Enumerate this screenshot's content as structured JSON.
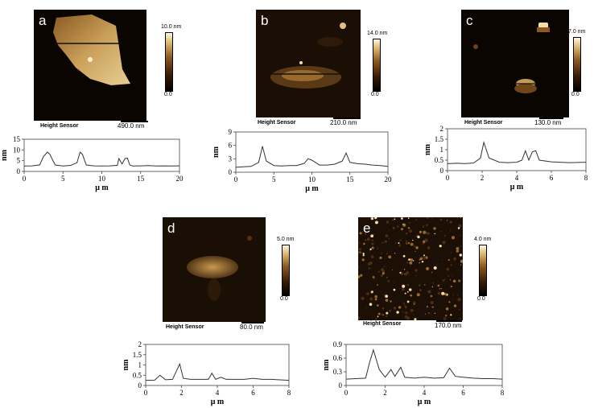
{
  "colors": {
    "afm_dark": "#0b0502",
    "afm_bright": "#e7c98a",
    "line": "#333333"
  },
  "panels": [
    {
      "letter": "a",
      "caption": "Height Sensor",
      "scale_bar": "490.0 nm",
      "colorbar_max": "10.0 nm",
      "colorbar_min": "0.0"
    },
    {
      "letter": "b",
      "caption": "Height Sensor",
      "scale_bar": "210.0 nm",
      "colorbar_max": "14.0 nm",
      "colorbar_min": "0.0"
    },
    {
      "letter": "c",
      "caption": "Height Sensor",
      "scale_bar": "130.0 nm",
      "colorbar_max": "7.0 nm",
      "colorbar_min": "0.0"
    },
    {
      "letter": "d",
      "caption": "Height Sensor",
      "scale_bar": "80.0 nm",
      "colorbar_max": "5.0 nm",
      "colorbar_min": "0.0"
    },
    {
      "letter": "e",
      "caption": "Height Sensor",
      "scale_bar": "170.0 nm",
      "colorbar_max": "4.0 nm",
      "colorbar_min": "0.0"
    }
  ],
  "chart_data": [
    {
      "type": "line",
      "xlabel": "μ m",
      "ylabel": "nm",
      "xlim": [
        0,
        20
      ],
      "ylim": [
        0,
        15
      ],
      "xticks": [
        0,
        5,
        10,
        15,
        20
      ],
      "yticks": [
        0,
        5,
        10,
        15
      ],
      "xticklabels": [
        "0",
        "5",
        "10",
        "15",
        "20"
      ],
      "yticklabels": [
        "0",
        "5",
        "10",
        "15"
      ],
      "x": [
        0,
        1,
        2,
        2.5,
        3,
        3.3,
        4,
        5,
        6,
        6.8,
        7.2,
        7.5,
        8,
        9,
        10,
        11,
        12,
        12.2,
        12.6,
        13,
        13.3,
        13.6,
        14,
        15,
        16,
        17,
        18,
        19,
        20
      ],
      "y": [
        2.5,
        2.6,
        3,
        7,
        9,
        8,
        3,
        2.5,
        2.8,
        4,
        9,
        8,
        3,
        2.6,
        2.5,
        2.6,
        2.8,
        6,
        3.5,
        6,
        6.2,
        3,
        2.5,
        2.6,
        2.7,
        2.5,
        2.6,
        2.5,
        2.6
      ]
    },
    {
      "type": "line",
      "xlabel": "μ m",
      "ylabel": "nm",
      "xlim": [
        0,
        20
      ],
      "ylim": [
        0,
        9
      ],
      "xticks": [
        0,
        5,
        10,
        15,
        20
      ],
      "yticks": [
        0,
        3,
        6,
        9
      ],
      "xticklabels": [
        "0",
        "5",
        "10",
        "15",
        "20"
      ],
      "yticklabels": [
        "0",
        "3",
        "6",
        "9"
      ],
      "x": [
        0,
        1,
        2,
        3,
        3.5,
        4,
        5,
        6,
        7,
        8,
        9,
        9.5,
        10,
        11,
        12,
        13,
        14,
        14.5,
        15,
        16,
        17,
        18,
        19,
        20
      ],
      "y": [
        1.1,
        1.2,
        1.3,
        2.2,
        5.8,
        2.5,
        1.5,
        1.4,
        1.5,
        1.5,
        2,
        3,
        2.7,
        1.6,
        1.6,
        1.8,
        2.5,
        4.3,
        2.2,
        1.9,
        1.8,
        1.6,
        1.5,
        1.3
      ]
    },
    {
      "type": "line",
      "xlabel": "μ m",
      "ylabel": "nm",
      "xlim": [
        0,
        8
      ],
      "ylim": [
        0,
        2
      ],
      "xticks": [
        0,
        2,
        4,
        6,
        8
      ],
      "yticks": [
        0,
        0.5,
        1,
        1.5,
        2
      ],
      "xticklabels": [
        "0",
        "2",
        "4",
        "6",
        "8"
      ],
      "yticklabels": [
        "0",
        "0.5",
        "1",
        "1.5",
        "2"
      ],
      "x": [
        0,
        0.5,
        1,
        1.5,
        1.9,
        2.1,
        2.4,
        3,
        3.5,
        4,
        4.3,
        4.5,
        4.7,
        4.9,
        5.1,
        5.3,
        6,
        7,
        8
      ],
      "y": [
        0.33,
        0.35,
        0.34,
        0.36,
        0.6,
        1.35,
        0.6,
        0.4,
        0.38,
        0.4,
        0.5,
        0.95,
        0.5,
        0.9,
        0.95,
        0.5,
        0.42,
        0.38,
        0.4
      ]
    },
    {
      "type": "line",
      "xlabel": "μ m",
      "ylabel": "nm",
      "xlim": [
        0,
        8
      ],
      "ylim": [
        0,
        2
      ],
      "xticks": [
        0,
        2,
        4,
        6,
        8
      ],
      "yticks": [
        0,
        0.5,
        1,
        1.5,
        2
      ],
      "xticklabels": [
        "0",
        "2",
        "4",
        "6",
        "8"
      ],
      "yticklabels": [
        "0",
        "0.5",
        "1",
        "1.5",
        "2"
      ],
      "x": [
        0,
        0.5,
        0.8,
        1.1,
        1.5,
        1.9,
        2.1,
        2.5,
        3,
        3.5,
        3.7,
        3.9,
        4.2,
        4.5,
        5,
        5.5,
        6,
        6.5,
        7,
        8
      ],
      "y": [
        0.25,
        0.26,
        0.5,
        0.28,
        0.3,
        1.05,
        0.35,
        0.3,
        0.3,
        0.3,
        0.6,
        0.3,
        0.4,
        0.3,
        0.3,
        0.3,
        0.35,
        0.3,
        0.3,
        0.25
      ]
    },
    {
      "type": "line",
      "xlabel": "μ m",
      "ylabel": "nm",
      "xlim": [
        0,
        8
      ],
      "ylim": [
        0,
        0.9
      ],
      "xticks": [
        0,
        2,
        4,
        6,
        8
      ],
      "yticks": [
        0,
        0.3,
        0.6,
        0.9
      ],
      "xticklabels": [
        "0",
        "2",
        "4",
        "6",
        "8"
      ],
      "yticklabels": [
        "0",
        "0.3",
        "0.6",
        "0.9"
      ],
      "x": [
        0,
        0.5,
        1,
        1.2,
        1.4,
        1.7,
        2,
        2.3,
        2.5,
        2.8,
        3,
        3.5,
        4,
        4.5,
        5,
        5.3,
        5.6,
        6,
        6.5,
        7,
        7.5,
        8
      ],
      "y": [
        0.14,
        0.15,
        0.16,
        0.5,
        0.78,
        0.35,
        0.18,
        0.35,
        0.2,
        0.4,
        0.18,
        0.16,
        0.18,
        0.16,
        0.17,
        0.38,
        0.2,
        0.18,
        0.16,
        0.15,
        0.15,
        0.14
      ]
    }
  ]
}
